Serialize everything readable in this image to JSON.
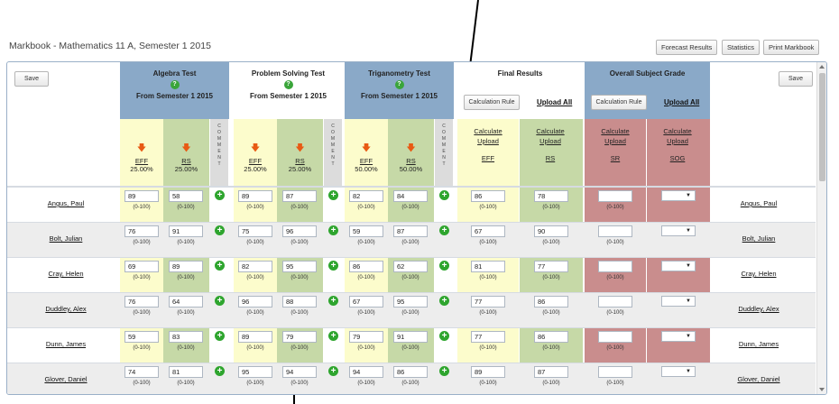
{
  "title": "Markbook - Mathematics 11 A, Semester 1 2015",
  "top_buttons": {
    "forecast": "Forecast Results",
    "statistics": "Statistics",
    "print": "Print Markbook"
  },
  "save_label": "Save",
  "groups": [
    {
      "title": "Algebra Test",
      "subtitle": "From Semester 1 2015",
      "eff": {
        "code": "EFF",
        "pct": "25.00%"
      },
      "rs": {
        "code": "RS",
        "pct": "25.00%"
      }
    },
    {
      "title": "Problem Solving Test",
      "subtitle": "From Semester 1 2015",
      "eff": {
        "code": "EFF",
        "pct": "25.00%"
      },
      "rs": {
        "code": "RS",
        "pct": "25.00%"
      }
    },
    {
      "title": "Triganometry Test",
      "subtitle": "From Semester 1 2015",
      "eff": {
        "code": "EFF",
        "pct": "50.00%"
      },
      "rs": {
        "code": "RS",
        "pct": "50.00%"
      }
    }
  ],
  "final_results": {
    "title": "Final Results",
    "calc_rule": "Calculation Rule",
    "upload_all": "Upload All",
    "calculate": "Calculate",
    "upload": "Upload",
    "col1": "EFF",
    "col2": "RS"
  },
  "overall": {
    "title": "Overall Subject Grade",
    "calc_rule": "Calculation Rule",
    "upload_all": "Upload All",
    "calculate": "Calculate",
    "upload": "Upload",
    "col1": "SR",
    "col2": "SOG"
  },
  "comment_label": "COMMENT",
  "range_text": "(0-100)",
  "students": [
    {
      "name": "Angus, Paul",
      "alg": [
        "89",
        "58"
      ],
      "ps": [
        "89",
        "87"
      ],
      "trig": [
        "82",
        "84"
      ],
      "final": [
        "86",
        "78"
      ]
    },
    {
      "name": "Bolt, Julian",
      "alg": [
        "76",
        "91"
      ],
      "ps": [
        "75",
        "96"
      ],
      "trig": [
        "59",
        "87"
      ],
      "final": [
        "67",
        "90"
      ]
    },
    {
      "name": "Cray, Helen",
      "alg": [
        "69",
        "89"
      ],
      "ps": [
        "82",
        "95"
      ],
      "trig": [
        "86",
        "62"
      ],
      "final": [
        "81",
        "77"
      ]
    },
    {
      "name": "Duddley, Alex",
      "alg": [
        "76",
        "64"
      ],
      "ps": [
        "96",
        "88"
      ],
      "trig": [
        "67",
        "95"
      ],
      "final": [
        "77",
        "86"
      ]
    },
    {
      "name": "Dunn, James",
      "alg": [
        "59",
        "83"
      ],
      "ps": [
        "89",
        "79"
      ],
      "trig": [
        "79",
        "91"
      ],
      "final": [
        "77",
        "86"
      ]
    },
    {
      "name": "Glover, Daniel",
      "alg": [
        "74",
        "81"
      ],
      "ps": [
        "95",
        "94"
      ],
      "trig": [
        "94",
        "86"
      ],
      "final": [
        "89",
        "87"
      ]
    }
  ],
  "colors": {
    "header_blue": "#8aa9c8",
    "light_yellow": "#fcfccc",
    "light_green": "#c6d9a7",
    "light_red": "#c98d8d",
    "arrow_orange": "#e85a14",
    "plus_green": "#2ea52e"
  }
}
